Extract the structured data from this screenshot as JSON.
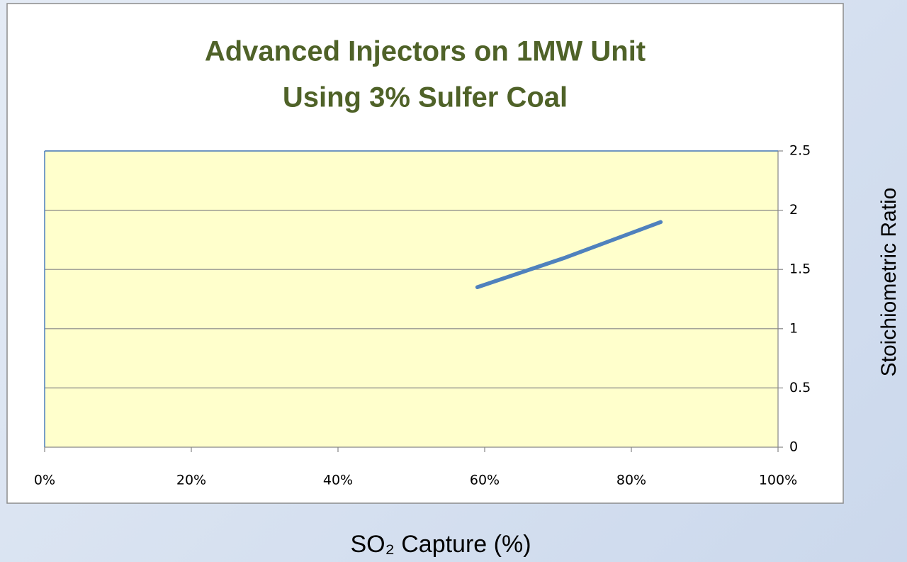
{
  "chart_data": {
    "type": "line",
    "title_lines": [
      "Advanced Injectors on 1MW Unit",
      "Using 3% Sulfer Coal"
    ],
    "x_label": "SO₂ Capture (%)",
    "y_label": "Stoichiometric Ratio",
    "x": [
      59,
      71,
      84
    ],
    "values": [
      1.35,
      1.6,
      1.9
    ],
    "color": "#4f81bd",
    "xlim": [
      0,
      100
    ],
    "xticks": [
      {
        "value": 0,
        "label": "0%"
      },
      {
        "value": 20,
        "label": "20%"
      },
      {
        "value": 40,
        "label": "40%"
      },
      {
        "value": 60,
        "label": "60%"
      },
      {
        "value": 80,
        "label": "80%"
      },
      {
        "value": 100,
        "label": "100%"
      }
    ],
    "ylim": [
      0,
      2.5
    ],
    "yticks": [
      0,
      0.5,
      1,
      1.5,
      2,
      2.5
    ],
    "grid": true
  }
}
